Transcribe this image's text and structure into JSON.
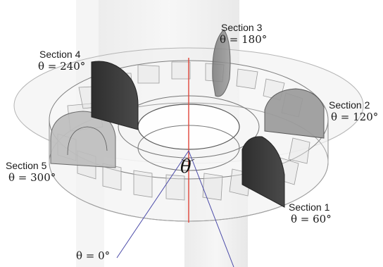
{
  "sections": [
    {
      "name": "Section 1",
      "angle": "θ = 60°"
    },
    {
      "name": "Section 2",
      "angle": "θ = 120°"
    },
    {
      "name": "Section 3",
      "angle": "θ = 180°"
    },
    {
      "name": "Section 4",
      "angle": "θ = 240°"
    },
    {
      "name": "Section 5",
      "angle": "θ = 300°"
    }
  ],
  "theta_symbol": "θ",
  "reference_label": "θ = 0°",
  "colors": {
    "dark_section": "#3a3a3a",
    "mid_section": "#8a8a8a",
    "light_section": "#b8b8b8",
    "axis_line": "#e0453a",
    "reference_lines": "#4a4aa8",
    "wireframe": "#9a9a9a"
  }
}
